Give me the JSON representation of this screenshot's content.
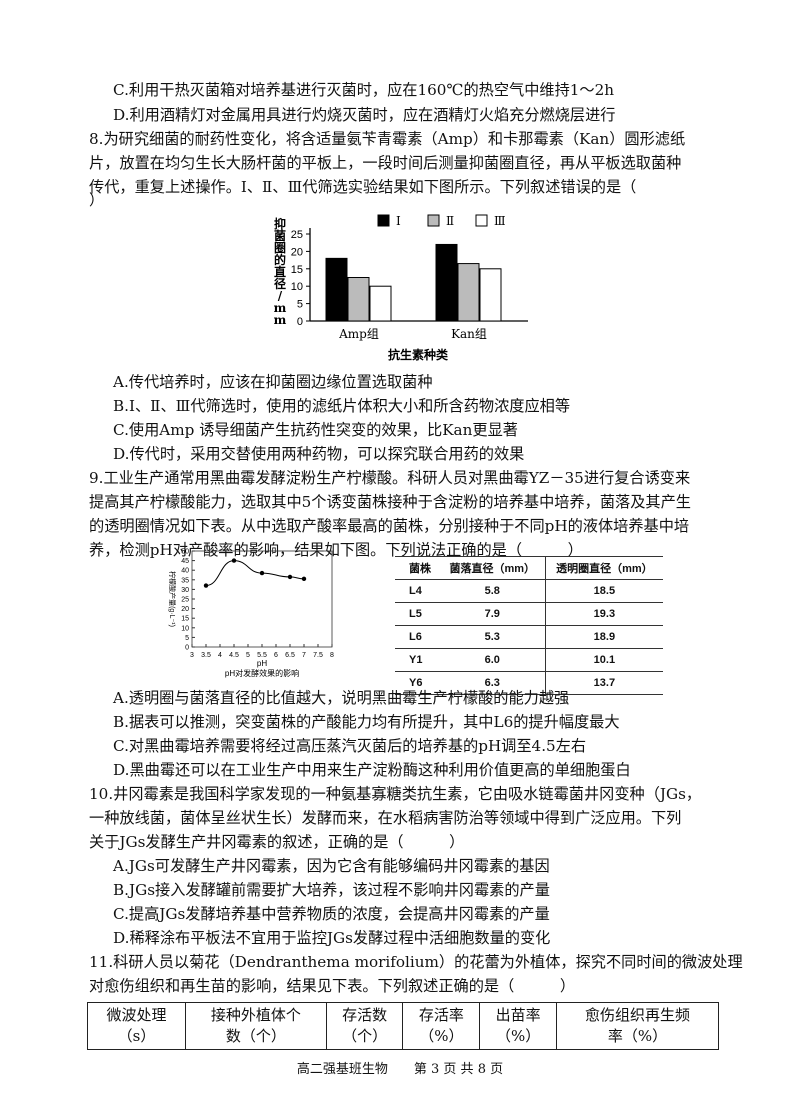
{
  "lines_top": {
    "c7": "C.利用干热灭菌箱对培养基进行灭菌时，应在160℃的热空气中维持1～2h",
    "d7": "D.利用酒精灯对金属用具进行灼烧灭菌时，应在酒精灯火焰充分燃烧层进行"
  },
  "q8": {
    "l1": "8.为研究细菌的耐药性变化，将含适量氨苄青霉素（Amp）和卡那霉素（Kan）圆形滤纸",
    "l2": "片，放置在均匀生长大肠杆菌的平板上，一段时间后测量抑菌圈直径，再从平板选取菌种",
    "l3": "传代，重复上述操作。Ⅰ、Ⅱ、Ⅲ代筛选实验结果如下图所示。下列叙述错误的是（",
    "l4": "）",
    "a": "A.传代培养时，应该在抑菌圈边缘位置选取菌种",
    "b": "B.Ⅰ、Ⅱ、Ⅲ代筛选时，使用的滤纸片体积大小和所含药物浓度应相等",
    "c": "C.使用Amp 诱导细菌产生抗药性突变的效果，比Kan更显著",
    "d": "D.传代时，采用交替使用两种药物，可以探究联合用药的效果"
  },
  "chart_data": [
    {
      "type": "bar",
      "categories": [
        "Amp组",
        "Kan组"
      ],
      "series": [
        {
          "name": "Ⅰ",
          "values": [
            18,
            22
          ],
          "color": "#000000"
        },
        {
          "name": "Ⅱ",
          "values": [
            12.5,
            16.5
          ],
          "color": "#bbbbbb"
        },
        {
          "name": "Ⅲ",
          "values": [
            10,
            15
          ],
          "color": "#ffffff"
        }
      ],
      "yticks": [
        "0",
        "5",
        "10",
        "15",
        "20",
        "25"
      ],
      "ylim": [
        0,
        25
      ],
      "ylabel": "抑菌圈的直径/mm",
      "xlabel": "抗生素种类",
      "legend": "top"
    },
    {
      "type": "line",
      "x": [
        3.5,
        4.5,
        5.5,
        6.5,
        7
      ],
      "y": [
        32,
        45,
        38.5,
        36.5,
        35.5
      ],
      "xticks": [
        "3",
        "3.5",
        "4",
        "4.5",
        "5",
        "5.5",
        "6",
        "6.5",
        "7",
        "7.5",
        "8"
      ],
      "yticks": [
        "0",
        "5",
        "10",
        "15",
        "20",
        "25",
        "30",
        "35",
        "40",
        "45",
        "50"
      ],
      "xlim": [
        3,
        8
      ],
      "ylim": [
        0,
        50
      ],
      "xlabel": "pH",
      "ylabel": "柠檬酸产量(g·L⁻¹)",
      "caption": "pH对发酵效果的影响"
    }
  ],
  "strain_table": {
    "headers": [
      "菌株",
      "菌落直径（mm）",
      "透明圈直径（mm）"
    ],
    "rows": [
      [
        "L4",
        "5.8",
        "18.5"
      ],
      [
        "L5",
        "7.9",
        "19.3"
      ],
      [
        "L6",
        "5.3",
        "18.9"
      ],
      [
        "Y1",
        "6.0",
        "10.1"
      ],
      [
        "Y6",
        "6.3",
        "13.7"
      ]
    ]
  },
  "q9": {
    "l1": "9.工业生产通常用黑曲霉发酵淀粉生产柠檬酸。科研人员对黑曲霉YZ－35进行复合诱变来",
    "l2": "提高其产柠檬酸能力，选取其中5个诱变菌株接种于含淀粉的培养基中培养，菌落及其产生",
    "l3": "的透明圈情况如下表。从中选取产酸率最高的菌株，分别接种于不同pH的液体培养基中培",
    "l4": "养，检测pH对产酸率的影响，结果如下图。下列说法正确的是（　　　）",
    "a": "A.透明圈与菌落直径的比值越大，说明黑曲霉生产柠檬酸的能力越强",
    "b": "B.据表可以推测，突变菌株的产酸能力均有所提升，其中L6的提升幅度最大",
    "c": "C.对黑曲霉培养需要将经过高压蒸汽灭菌后的培养基的pH调至4.5左右",
    "d": "D.黑曲霉还可以在工业生产中用来生产淀粉酶这种利用价值更高的单细胞蛋白"
  },
  "q10": {
    "l1": "10.井冈霉素是我国科学家发现的一种氨基寡糖类抗生素，它由吸水链霉菌井冈变种（JGs，",
    "l2": "一种放线菌，菌体呈丝状生长）发酵而来，在水稻病害防治等领域中得到广泛应用。下列",
    "l3": "关于JGs发酵生产井冈霉素的叙述，正确的是（　　　）",
    "a": "A.JGs可发酵生产井冈霉素，因为它含有能够编码井冈霉素的基因",
    "b": "B.JGs接入发酵罐前需要扩大培养，该过程不影响井冈霉素的产量",
    "c": "C.提高JGs发酵培养基中营养物质的浓度，会提高井冈霉素的产量",
    "d": "D.稀释涂布平板法不宜用于监控JGs发酵过程中活细胞数量的变化"
  },
  "q11": {
    "l1": "11.科研人员以菊花（Dendranthema morifolium）的花蕾为外植体，探究不同时间的微波处理",
    "l2": "对愈伤组织和再生苗的影响，结果见下表。下列叙述正确的是（　　　）",
    "table_headers": [
      [
        "微波处理",
        "（s）"
      ],
      [
        "接种外植体个",
        "数（个）"
      ],
      [
        "存活数",
        "（个）"
      ],
      [
        "存活率",
        "（%）"
      ],
      [
        "出苗率",
        "（%）"
      ],
      [
        "愈伤组织再生频",
        "率（%）"
      ]
    ]
  },
  "footer": "高二强基班生物　　第 3 页 共 8 页"
}
